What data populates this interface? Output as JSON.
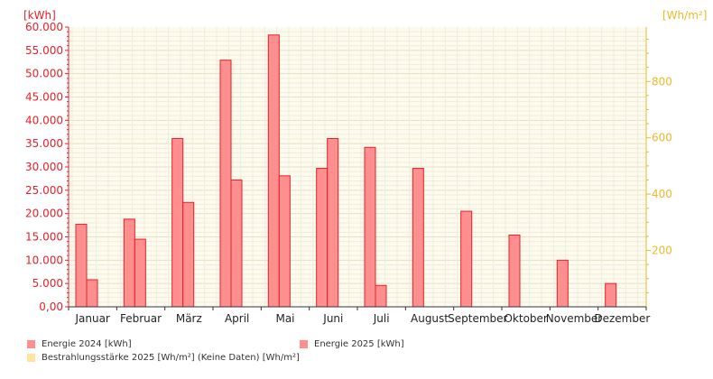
{
  "chart_data": {
    "type": "bar",
    "left_axis_unit": "[kWh]",
    "right_axis_unit": "[Wh/m²]",
    "ylim": [
      0,
      60000
    ],
    "y2lim": [
      0,
      993
    ],
    "y_ticks": [
      "0,00",
      "5.000",
      "10.000",
      "15.000",
      "20.000",
      "25.000",
      "30.000",
      "35.000",
      "40.000",
      "45.000",
      "50.000",
      "55.000",
      "60.000"
    ],
    "y2_ticks": [
      {
        "value": 200,
        "label": "200"
      },
      {
        "value": 400,
        "label": "400"
      },
      {
        "value": 600,
        "label": "600"
      },
      {
        "value": 800,
        "label": "800"
      }
    ],
    "categories": [
      "Januar",
      "Februar",
      "März",
      "April",
      "Mai",
      "Juni",
      "Juli",
      "August",
      "September",
      "Oktober",
      "November",
      "Dezember"
    ],
    "series": [
      {
        "name": "Energie 2024 [kWh]",
        "color": "#ff8f8f",
        "edge": "#e8202a",
        "values": [
          17700,
          18800,
          36100,
          52900,
          58300,
          29700,
          34200,
          29700,
          20500,
          15400,
          10000,
          5000
        ]
      },
      {
        "name": "Energie 2025 [kWh]",
        "color": "#ff8f8f",
        "edge": "#e8202a",
        "values": [
          5800,
          14500,
          22400,
          27200,
          28100,
          36100,
          4600,
          null,
          null,
          null,
          null,
          null
        ]
      }
    ],
    "legend": [
      {
        "label": "Energie 2024 [kWh]",
        "color": "#ff8f8f"
      },
      {
        "label": "Energie 2025 [kWh]",
        "color": "#ff8f8f"
      },
      {
        "label": "Bestrahlungsstärke 2025 [Wh/m²] (Keine Daten) [Wh/m²]",
        "color": "#ffe4a0"
      }
    ],
    "grid": true,
    "legend_position": "bottom-left"
  }
}
